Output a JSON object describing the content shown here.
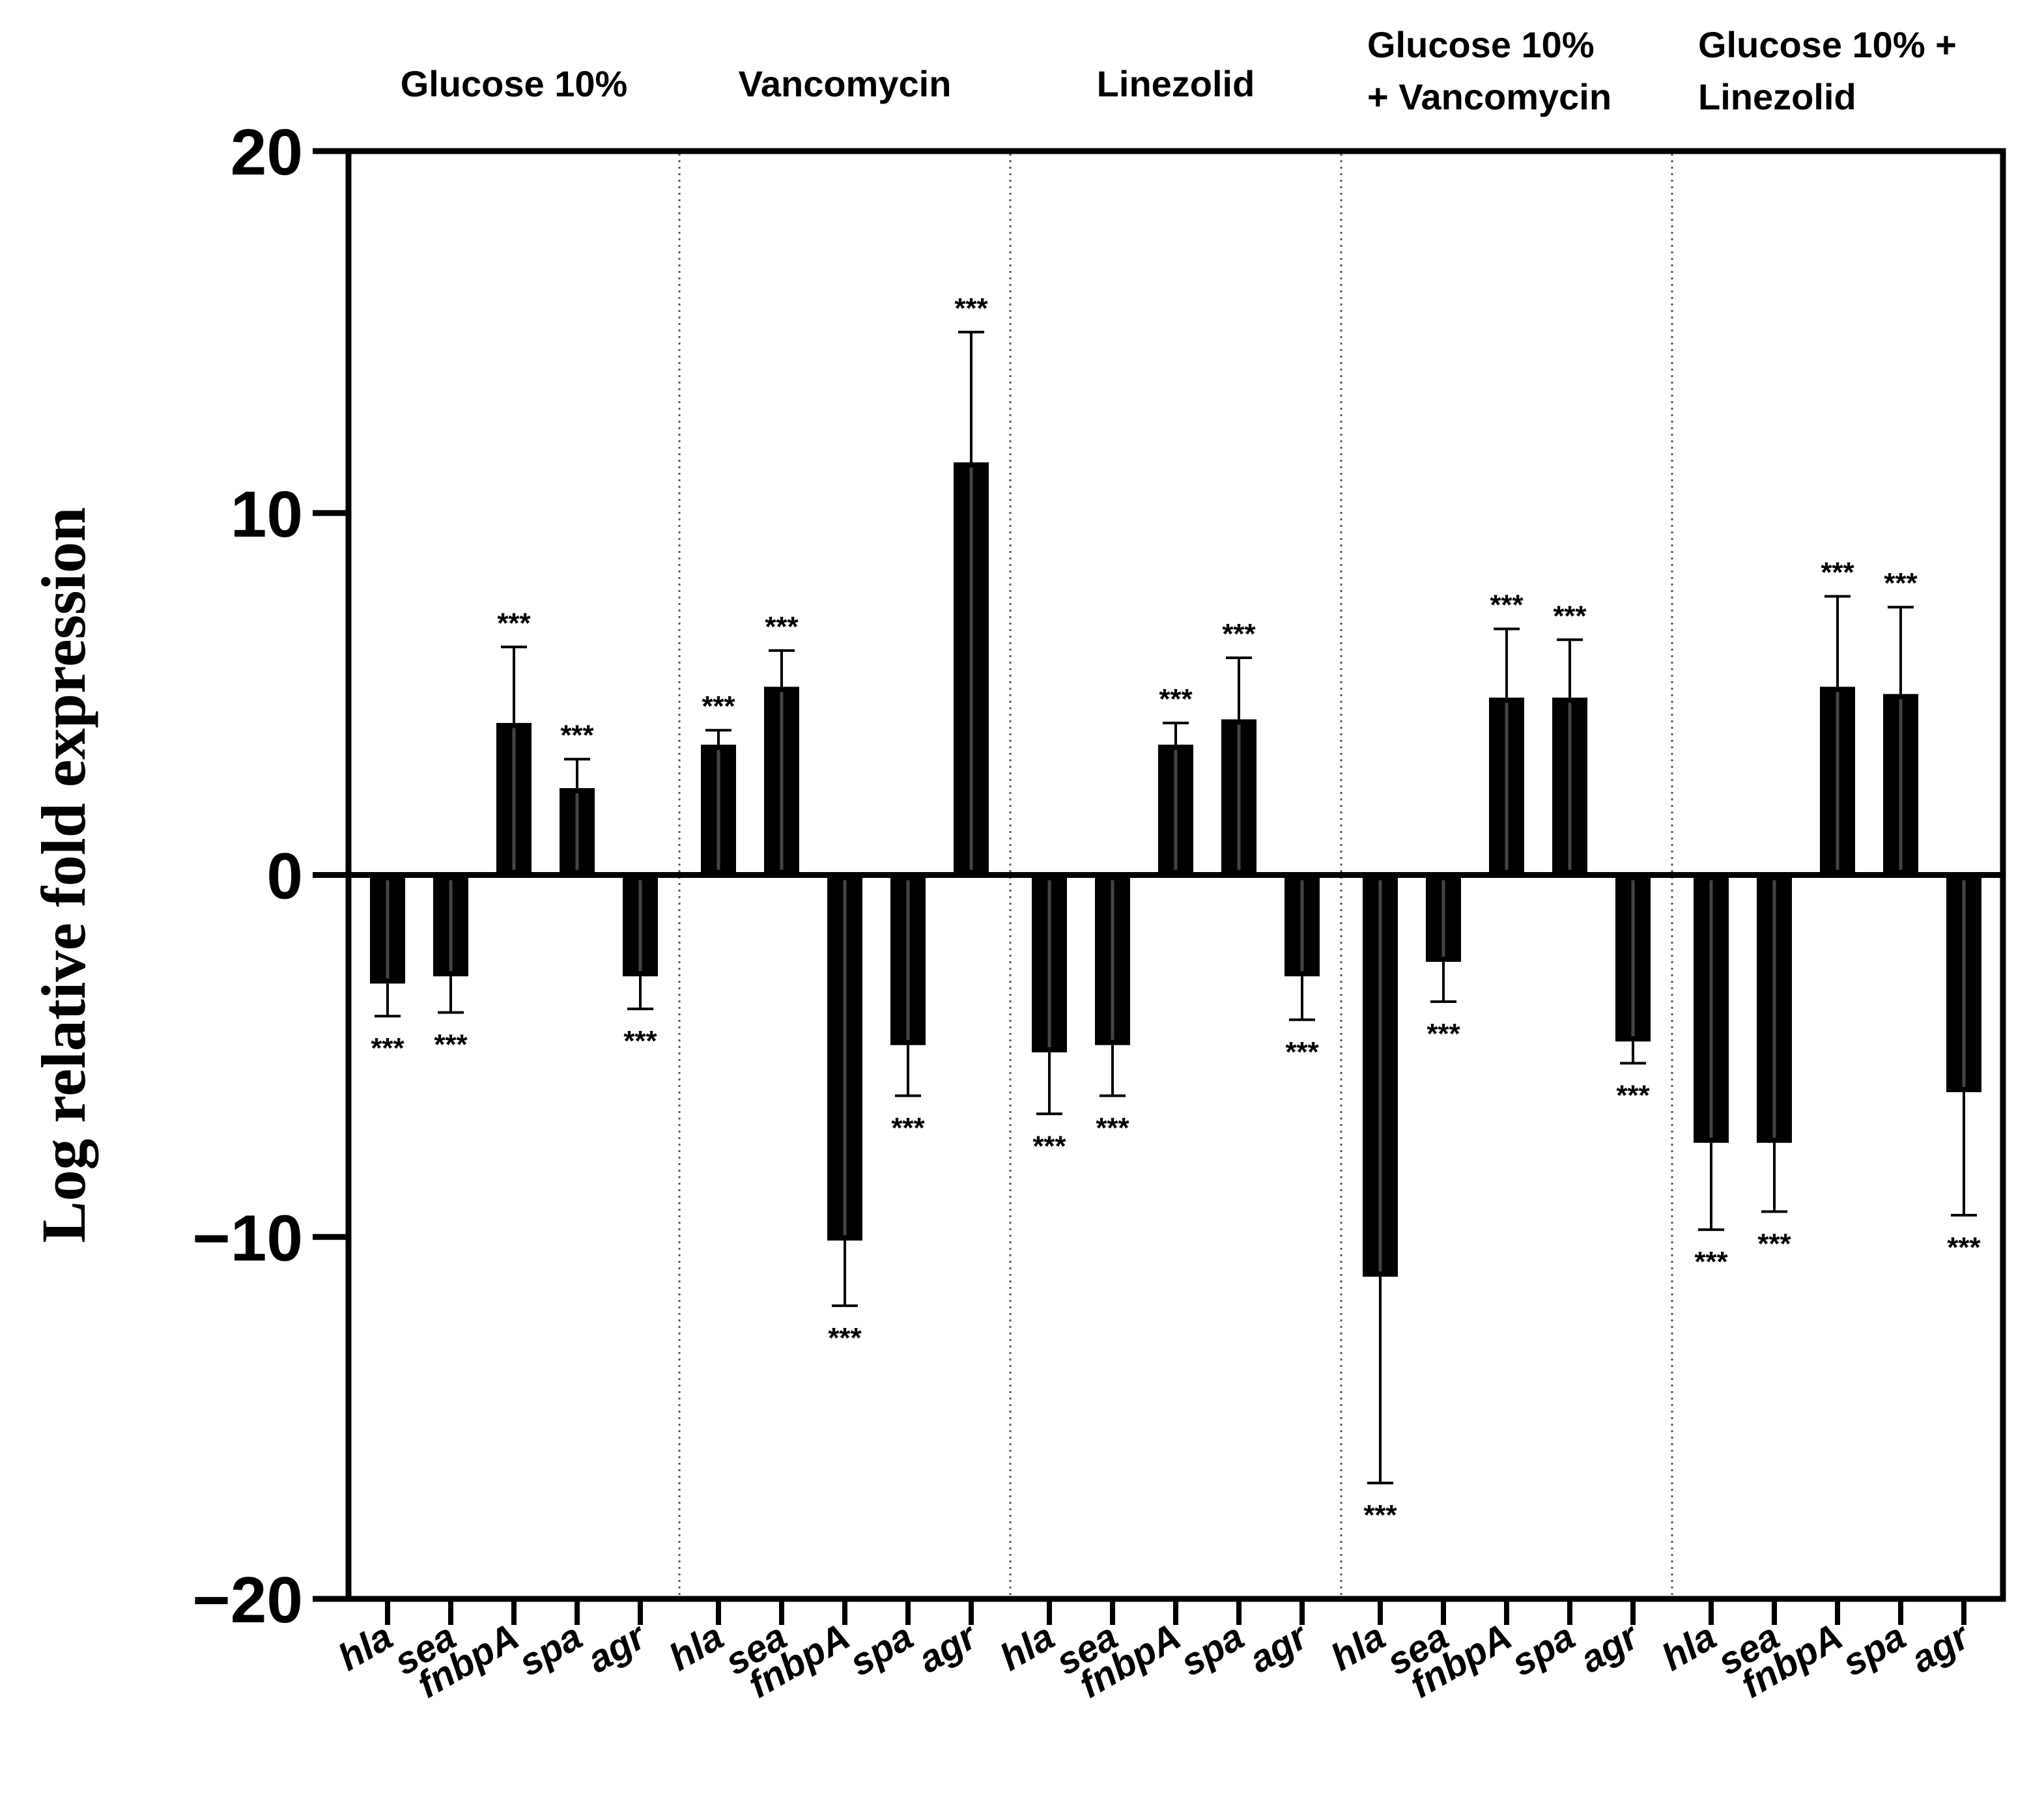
{
  "chart_data": {
    "type": "bar",
    "ylabel": "Log relative fold expression",
    "ylim": [
      -20,
      20
    ],
    "yticks": [
      {
        "value": 20,
        "label": "20"
      },
      {
        "value": 10,
        "label": "10"
      },
      {
        "value": 0,
        "label": "0"
      },
      {
        "value": -10,
        "label": "−10"
      },
      {
        "value": -20,
        "label": "−20"
      }
    ],
    "grid": false,
    "group_separators": "dotted",
    "bar_color": "#000000",
    "significance_label": "***",
    "groups": [
      {
        "title_lines": [
          "Glucose 10%"
        ],
        "bars": [
          {
            "category": "hla",
            "value": -3.0,
            "error": 0.9
          },
          {
            "category": "sea",
            "value": -2.8,
            "error": 1.0
          },
          {
            "category": "fnbpA",
            "value": 4.2,
            "error": 2.1
          },
          {
            "category": "spa",
            "value": 2.4,
            "error": 0.8
          },
          {
            "category": "agr",
            "value": -2.8,
            "error": 0.9
          }
        ]
      },
      {
        "title_lines": [
          "Vancomycin"
        ],
        "bars": [
          {
            "category": "hla",
            "value": 3.6,
            "error": 0.4
          },
          {
            "category": "sea",
            "value": 5.2,
            "error": 1.0
          },
          {
            "category": "fnbpA",
            "value": -10.1,
            "error": 1.8
          },
          {
            "category": "spa",
            "value": -4.7,
            "error": 1.4
          },
          {
            "category": "agr",
            "value": 11.4,
            "error": 3.6
          }
        ]
      },
      {
        "title_lines": [
          "Linezolid"
        ],
        "bars": [
          {
            "category": "hla",
            "value": -4.9,
            "error": 1.7
          },
          {
            "category": "sea",
            "value": -4.7,
            "error": 1.4
          },
          {
            "category": "fnbpA",
            "value": 3.6,
            "error": 0.6
          },
          {
            "category": "spa",
            "value": 4.3,
            "error": 1.7
          },
          {
            "category": "agr",
            "value": -2.8,
            "error": 1.2
          }
        ]
      },
      {
        "title_lines": [
          "Glucose 10%",
          "+ Vancomycin"
        ],
        "bars": [
          {
            "category": "hla",
            "value": -11.1,
            "error": 5.7
          },
          {
            "category": "sea",
            "value": -2.4,
            "error": 1.1
          },
          {
            "category": "fnbpA",
            "value": 4.9,
            "error": 1.9
          },
          {
            "category": "spa",
            "value": 4.9,
            "error": 1.6
          },
          {
            "category": "agr",
            "value": -4.6,
            "error": 0.6
          }
        ]
      },
      {
        "title_lines": [
          "Glucose 10% +",
          "Linezolid"
        ],
        "bars": [
          {
            "category": "hla",
            "value": -7.4,
            "error": 2.4
          },
          {
            "category": "sea",
            "value": -7.4,
            "error": 1.9
          },
          {
            "category": "fnbpA",
            "value": 5.2,
            "error": 2.5
          },
          {
            "category": "spa",
            "value": 5.0,
            "error": 2.4
          },
          {
            "category": "agr",
            "value": -6.0,
            "error": 3.4
          }
        ]
      }
    ]
  }
}
